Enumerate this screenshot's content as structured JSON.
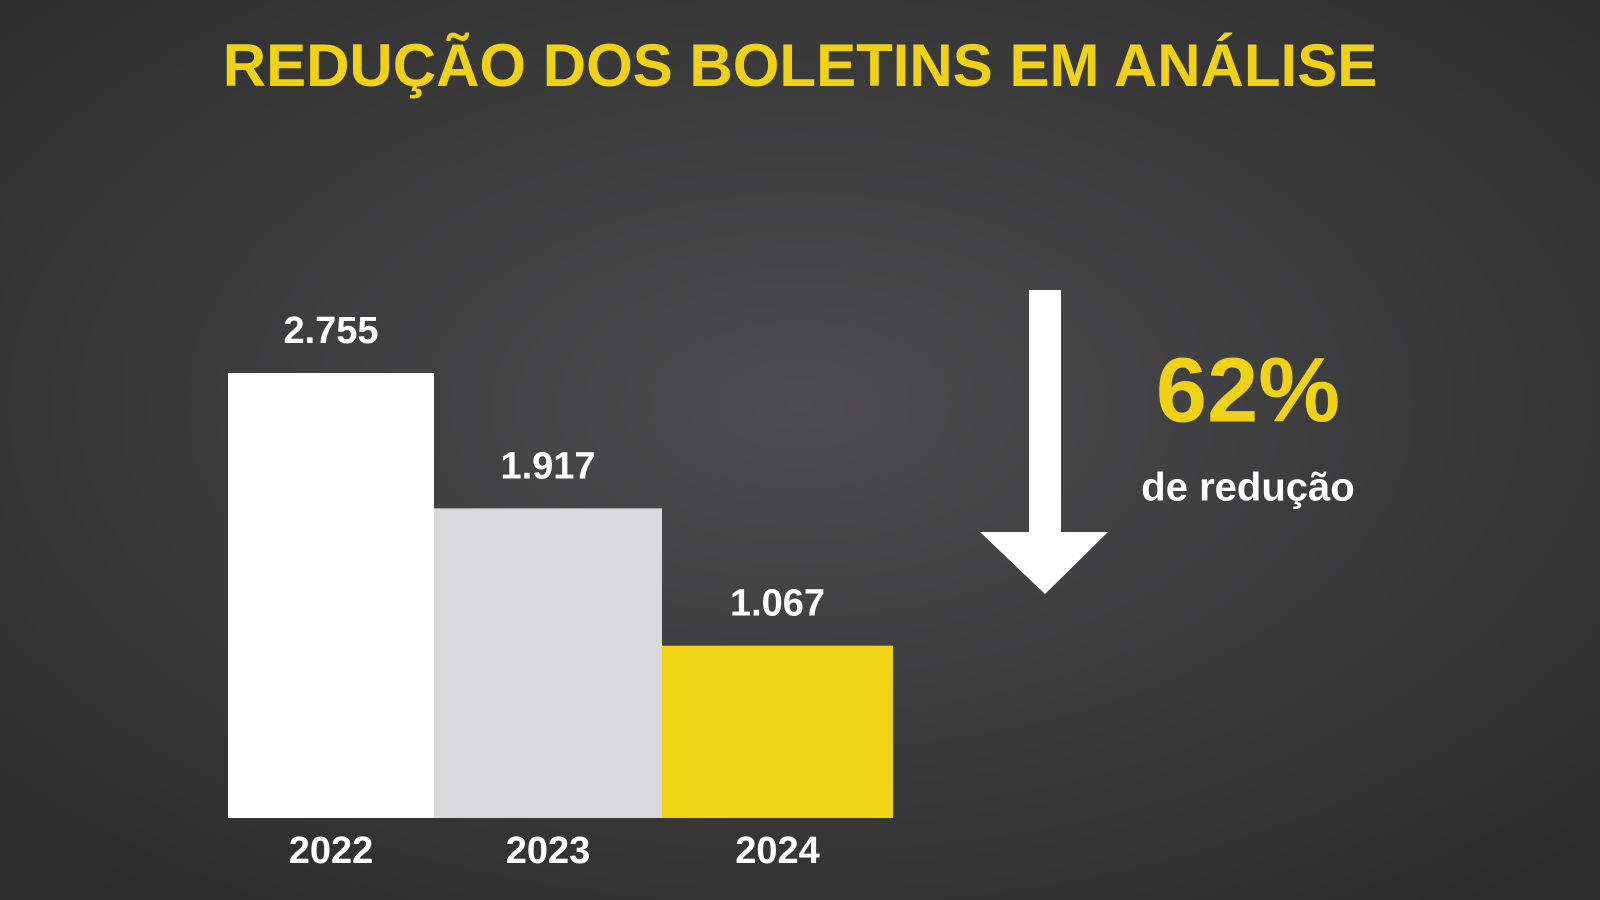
{
  "chart_data": {
    "type": "bar",
    "title": "REDUÇÃO DOS BOLETINS EM ANÁLISE",
    "categories": [
      "2022",
      "2023",
      "2024"
    ],
    "values": [
      2755,
      1917,
      1067
    ],
    "value_labels": [
      "2.755",
      "1.917",
      "1.067"
    ],
    "colors": [
      "#ffffff",
      "#d9d8da",
      "#f0d312"
    ],
    "annotations": {
      "highlight": "62%",
      "caption": "de redução"
    }
  }
}
